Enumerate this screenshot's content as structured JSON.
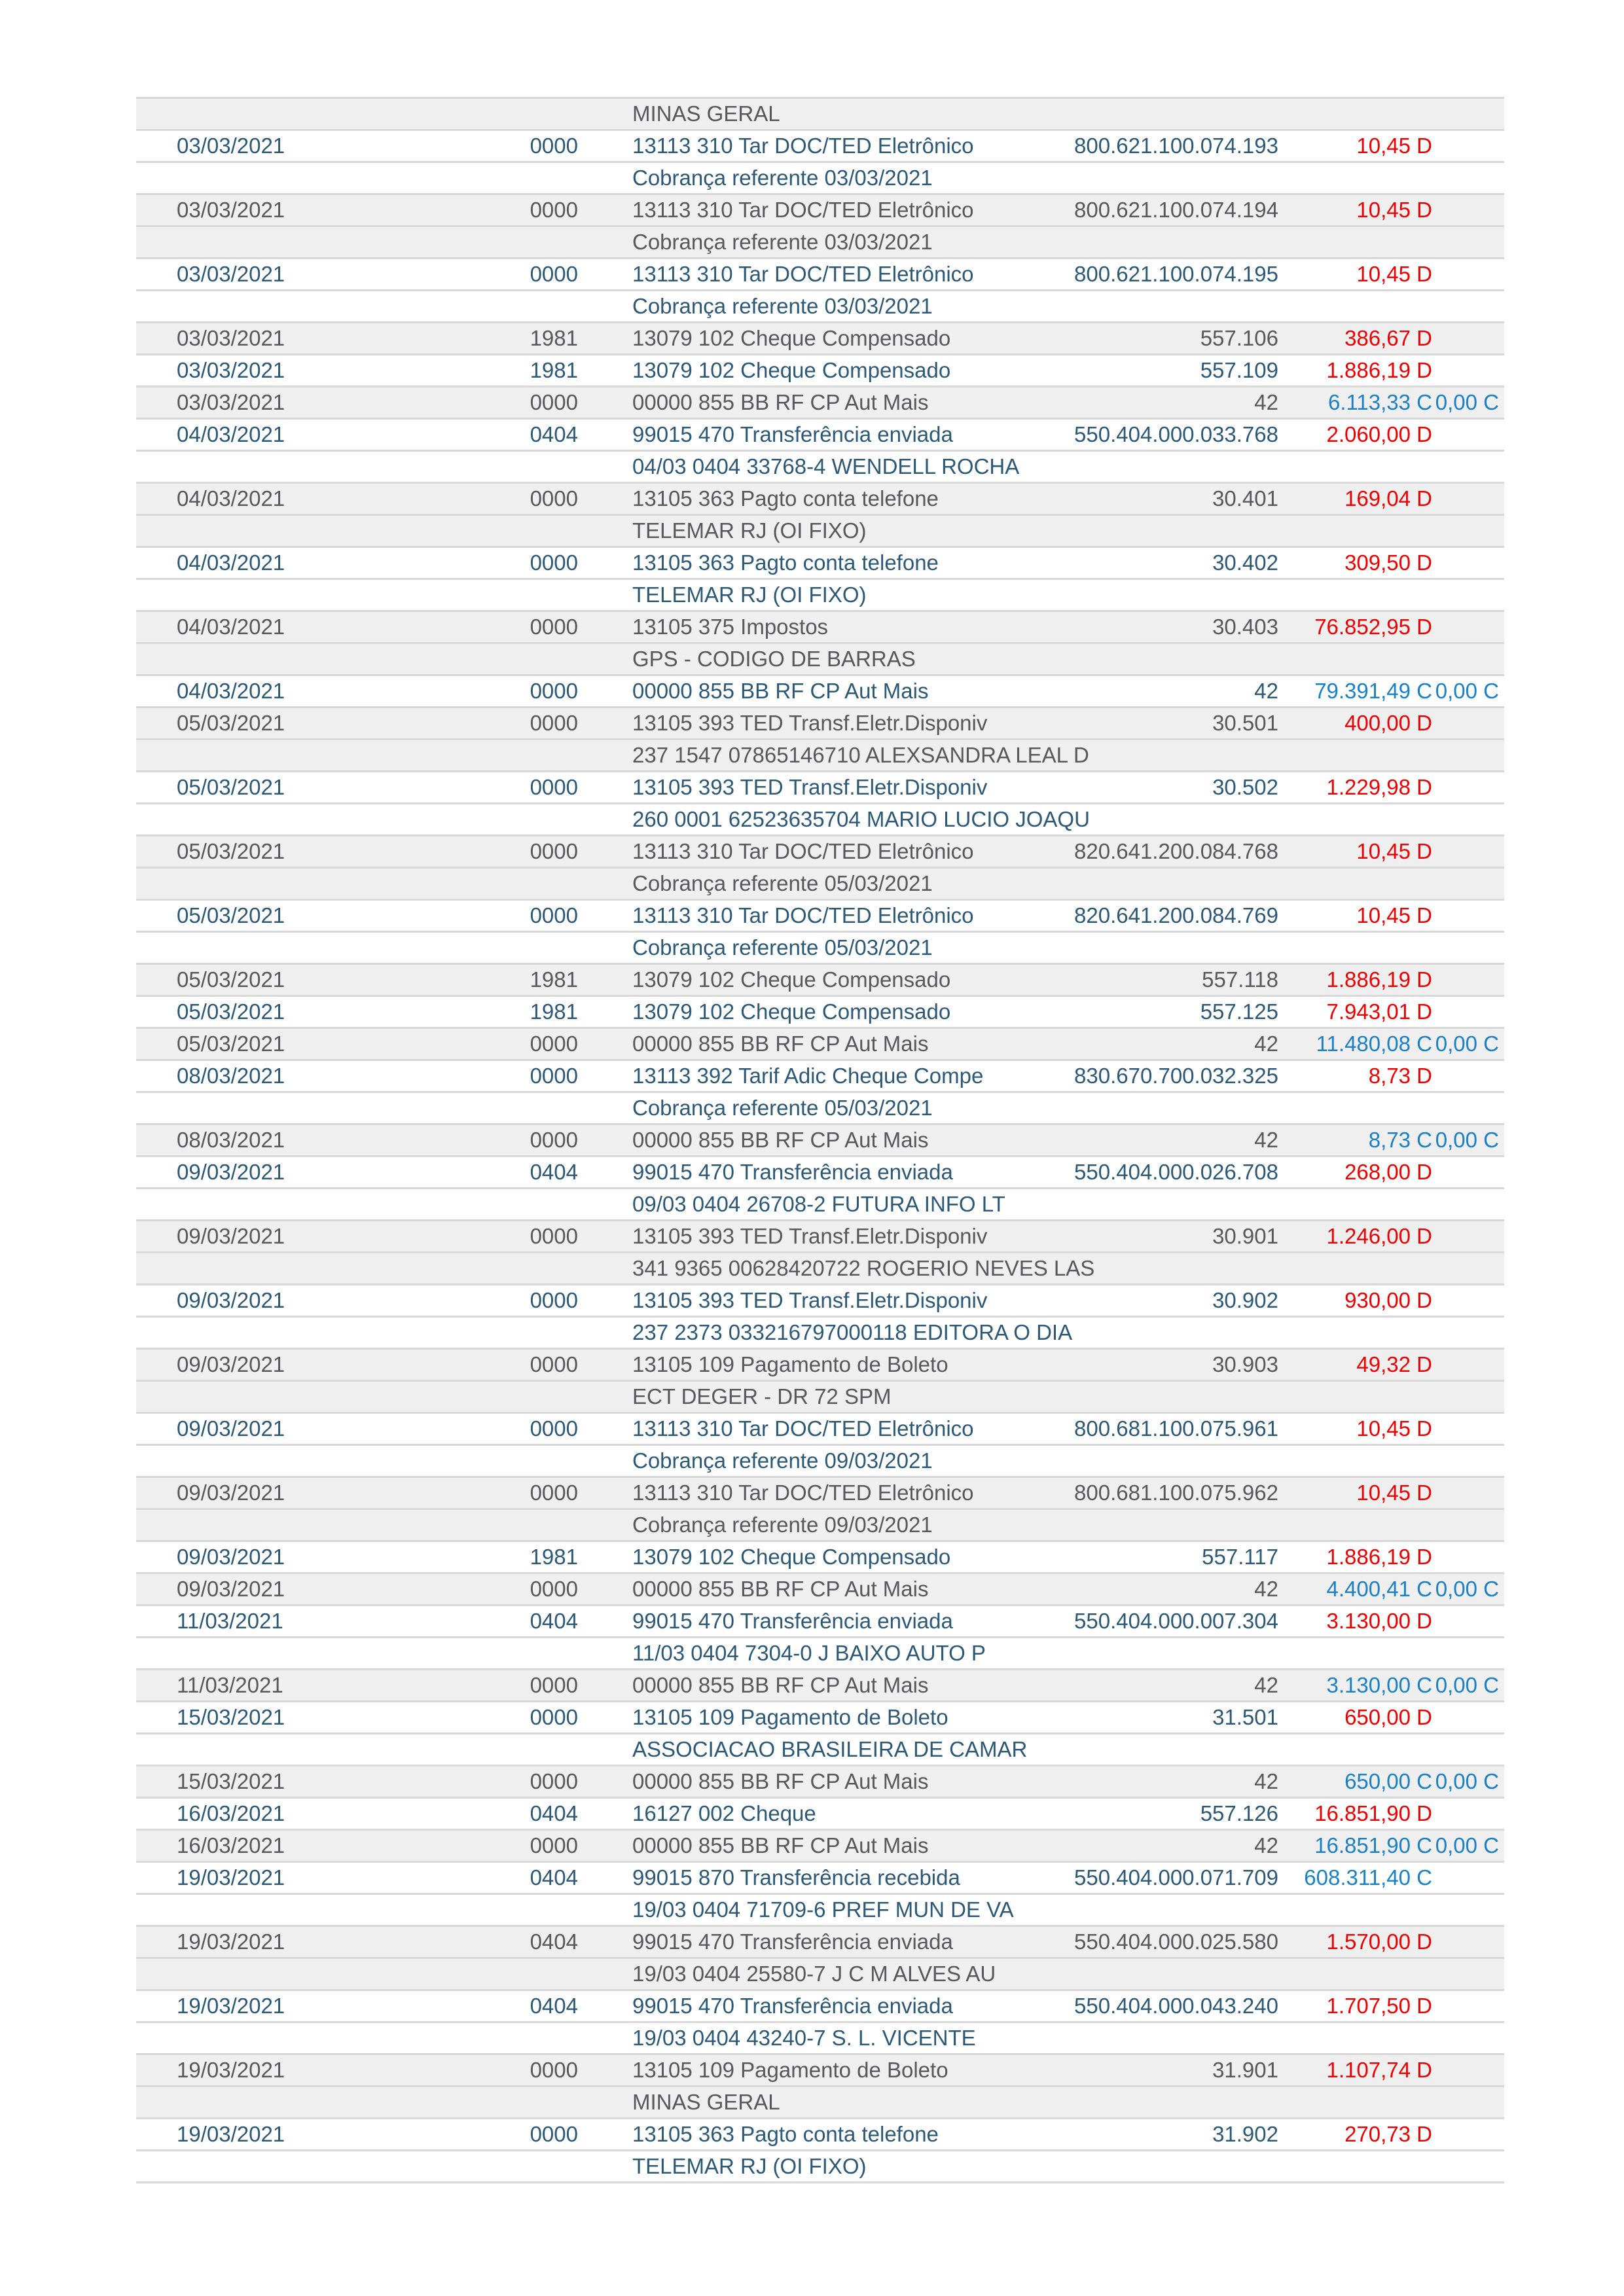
{
  "statement": {
    "leading_detail": "MINAS GERAL",
    "debit_marker": "D",
    "credit_marker": "C",
    "rows": [
      {
        "date": "03/03/2021",
        "branch": "0000",
        "history": "13113 310 Tar DOC/TED Eletrônico",
        "doc": "800.621.100.074.193",
        "amount": "10,45 D",
        "detail": "Cobrança referente 03/03/2021"
      },
      {
        "date": "03/03/2021",
        "branch": "0000",
        "history": "13113 310 Tar DOC/TED Eletrônico",
        "doc": "800.621.100.074.194",
        "amount": "10,45 D",
        "detail": "Cobrança referente 03/03/2021"
      },
      {
        "date": "03/03/2021",
        "branch": "0000",
        "history": "13113 310 Tar DOC/TED Eletrônico",
        "doc": "800.621.100.074.195",
        "amount": "10,45 D",
        "detail": "Cobrança referente 03/03/2021"
      },
      {
        "date": "03/03/2021",
        "branch": "1981",
        "history": "13079 102 Cheque Compensado",
        "doc": "557.106",
        "amount": "386,67 D"
      },
      {
        "date": "03/03/2021",
        "branch": "1981",
        "history": "13079 102 Cheque Compensado",
        "doc": "557.109",
        "amount": "1.886,19 D"
      },
      {
        "date": "03/03/2021",
        "branch": "0000",
        "history": "00000 855 BB RF CP Aut Mais",
        "doc": "42",
        "amount": "6.113,33 C",
        "balance": "0,00 C"
      },
      {
        "date": "04/03/2021",
        "branch": "0404",
        "history": "99015 470 Transferência enviada",
        "doc": "550.404.000.033.768",
        "amount": "2.060,00 D",
        "detail": "04/03 0404 33768-4 WENDELL ROCHA"
      },
      {
        "date": "04/03/2021",
        "branch": "0000",
        "history": "13105 363 Pagto conta telefone",
        "doc": "30.401",
        "amount": "169,04 D",
        "detail": "TELEMAR RJ (OI FIXO)"
      },
      {
        "date": "04/03/2021",
        "branch": "0000",
        "history": "13105 363 Pagto conta telefone",
        "doc": "30.402",
        "amount": "309,50 D",
        "detail": "TELEMAR RJ (OI FIXO)"
      },
      {
        "date": "04/03/2021",
        "branch": "0000",
        "history": "13105 375 Impostos",
        "doc": "30.403",
        "amount": "76.852,95 D",
        "detail": "GPS - CODIGO DE BARRAS"
      },
      {
        "date": "04/03/2021",
        "branch": "0000",
        "history": "00000 855 BB RF CP Aut Mais",
        "doc": "42",
        "amount": "79.391,49 C",
        "balance": "0,00 C"
      },
      {
        "date": "05/03/2021",
        "branch": "0000",
        "history": "13105 393 TED Transf.Eletr.Disponiv",
        "doc": "30.501",
        "amount": "400,00 D",
        "detail": "237 1547 07865146710 ALEXSANDRA LEAL D"
      },
      {
        "date": "05/03/2021",
        "branch": "0000",
        "history": "13105 393 TED Transf.Eletr.Disponiv",
        "doc": "30.502",
        "amount": "1.229,98 D",
        "detail": "260 0001 62523635704 MARIO LUCIO JOAQU"
      },
      {
        "date": "05/03/2021",
        "branch": "0000",
        "history": "13113 310 Tar DOC/TED Eletrônico",
        "doc": "820.641.200.084.768",
        "amount": "10,45 D",
        "detail": "Cobrança referente 05/03/2021"
      },
      {
        "date": "05/03/2021",
        "branch": "0000",
        "history": "13113 310 Tar DOC/TED Eletrônico",
        "doc": "820.641.200.084.769",
        "amount": "10,45 D",
        "detail": "Cobrança referente 05/03/2021"
      },
      {
        "date": "05/03/2021",
        "branch": "1981",
        "history": "13079 102 Cheque Compensado",
        "doc": "557.118",
        "amount": "1.886,19 D"
      },
      {
        "date": "05/03/2021",
        "branch": "1981",
        "history": "13079 102 Cheque Compensado",
        "doc": "557.125",
        "amount": "7.943,01 D"
      },
      {
        "date": "05/03/2021",
        "branch": "0000",
        "history": "00000 855 BB RF CP Aut Mais",
        "doc": "42",
        "amount": "11.480,08 C",
        "balance": "0,00 C"
      },
      {
        "date": "08/03/2021",
        "branch": "0000",
        "history": "13113 392 Tarif Adic Cheque Compe",
        "doc": "830.670.700.032.325",
        "amount": "8,73 D",
        "detail": "Cobrança referente 05/03/2021"
      },
      {
        "date": "08/03/2021",
        "branch": "0000",
        "history": "00000 855 BB RF CP Aut Mais",
        "doc": "42",
        "amount": "8,73 C",
        "balance": "0,00 C"
      },
      {
        "date": "09/03/2021",
        "branch": "0404",
        "history": "99015 470 Transferência enviada",
        "doc": "550.404.000.026.708",
        "amount": "268,00 D",
        "detail": "09/03 0404 26708-2 FUTURA INFO LT"
      },
      {
        "date": "09/03/2021",
        "branch": "0000",
        "history": "13105 393 TED Transf.Eletr.Disponiv",
        "doc": "30.901",
        "amount": "1.246,00 D",
        "detail": "341 9365 00628420722 ROGERIO NEVES LAS"
      },
      {
        "date": "09/03/2021",
        "branch": "0000",
        "history": "13105 393 TED Transf.Eletr.Disponiv",
        "doc": "30.902",
        "amount": "930,00 D",
        "detail": "237 2373 033216797000118 EDITORA O DIA"
      },
      {
        "date": "09/03/2021",
        "branch": "0000",
        "history": "13105 109 Pagamento de Boleto",
        "doc": "30.903",
        "amount": "49,32 D",
        "detail": "ECT DEGER - DR 72 SPM"
      },
      {
        "date": "09/03/2021",
        "branch": "0000",
        "history": "13113 310 Tar DOC/TED Eletrônico",
        "doc": "800.681.100.075.961",
        "amount": "10,45 D",
        "detail": "Cobrança referente 09/03/2021"
      },
      {
        "date": "09/03/2021",
        "branch": "0000",
        "history": "13113 310 Tar DOC/TED Eletrônico",
        "doc": "800.681.100.075.962",
        "amount": "10,45 D",
        "detail": "Cobrança referente 09/03/2021"
      },
      {
        "date": "09/03/2021",
        "branch": "1981",
        "history": "13079 102 Cheque Compensado",
        "doc": "557.117",
        "amount": "1.886,19 D"
      },
      {
        "date": "09/03/2021",
        "branch": "0000",
        "history": "00000 855 BB RF CP Aut Mais",
        "doc": "42",
        "amount": "4.400,41 C",
        "balance": "0,00 C"
      },
      {
        "date": "11/03/2021",
        "branch": "0404",
        "history": "99015 470 Transferência enviada",
        "doc": "550.404.000.007.304",
        "amount": "3.130,00 D",
        "detail": "11/03 0404 7304-0 J BAIXO AUTO P"
      },
      {
        "date": "11/03/2021",
        "branch": "0000",
        "history": "00000 855 BB RF CP Aut Mais",
        "doc": "42",
        "amount": "3.130,00 C",
        "balance": "0,00 C"
      },
      {
        "date": "15/03/2021",
        "branch": "0000",
        "history": "13105 109 Pagamento de Boleto",
        "doc": "31.501",
        "amount": "650,00 D",
        "detail": "ASSOCIACAO BRASILEIRA DE CAMAR"
      },
      {
        "date": "15/03/2021",
        "branch": "0000",
        "history": "00000 855 BB RF CP Aut Mais",
        "doc": "42",
        "amount": "650,00 C",
        "balance": "0,00 C"
      },
      {
        "date": "16/03/2021",
        "branch": "0404",
        "history": "16127 002 Cheque",
        "doc": "557.126",
        "amount": "16.851,90 D"
      },
      {
        "date": "16/03/2021",
        "branch": "0000",
        "history": "00000 855 BB RF CP Aut Mais",
        "doc": "42",
        "amount": "16.851,90 C",
        "balance": "0,00 C"
      },
      {
        "date": "19/03/2021",
        "branch": "0404",
        "history": "99015 870 Transferência recebida",
        "doc": "550.404.000.071.709",
        "amount": "608.311,40 C",
        "detail": "19/03 0404 71709-6 PREF MUN DE VA"
      },
      {
        "date": "19/03/2021",
        "branch": "0404",
        "history": "99015 470 Transferência enviada",
        "doc": "550.404.000.025.580",
        "amount": "1.570,00 D",
        "detail": "19/03 0404 25580-7 J C M ALVES AU"
      },
      {
        "date": "19/03/2021",
        "branch": "0404",
        "history": "99015 470 Transferência enviada",
        "doc": "550.404.000.043.240",
        "amount": "1.707,50 D",
        "detail": "19/03 0404 43240-7 S. L. VICENTE"
      },
      {
        "date": "19/03/2021",
        "branch": "0000",
        "history": "13105 109 Pagamento de Boleto",
        "doc": "31.901",
        "amount": "1.107,74 D",
        "detail": "MINAS GERAL"
      },
      {
        "date": "19/03/2021",
        "branch": "0000",
        "history": "13105 363 Pagto conta telefone",
        "doc": "31.902",
        "amount": "270,73 D",
        "detail": "TELEMAR RJ (OI FIXO)"
      }
    ]
  },
  "colors": {
    "debit": "#ea0000",
    "credit": "#1b80c4",
    "text_primary": "#2d5976",
    "text_secondary": "#58585a",
    "row_alt_bg": "#efefef",
    "row_border": "#d8d8d8"
  }
}
